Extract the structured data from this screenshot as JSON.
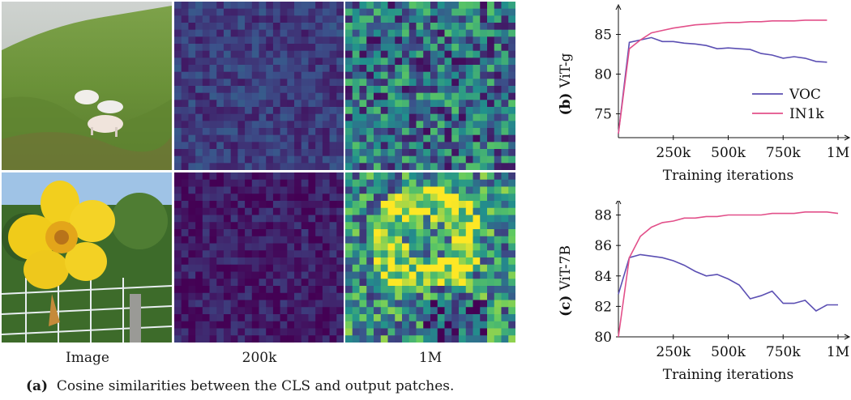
{
  "figure": {
    "column_labels": [
      "Image",
      "200k",
      "1M"
    ],
    "caption_tag": "(a)",
    "caption_text": "Cosine similarities between the CLS and output patches.",
    "heatmap_colors": [
      "#440154",
      "#3b528b",
      "#21918c",
      "#5ec962",
      "#fde725"
    ],
    "heatmaps": [
      {
        "row": "sheep",
        "checkpoint": "200k",
        "level": 0.18
      },
      {
        "row": "sheep",
        "checkpoint": "1M",
        "level": 0.38
      },
      {
        "row": "flower",
        "checkpoint": "200k",
        "level": 0.08
      },
      {
        "row": "flower",
        "checkpoint": "1M",
        "level": 0.5
      }
    ],
    "photo_icons": [
      "sheep-on-hillside-photo",
      "yellow-flower-photo"
    ]
  },
  "chart_data": [
    {
      "type": "line",
      "panel_label": "(b)",
      "model": "ViT-g",
      "xlabel": "Training iterations",
      "xticks": [
        "250k",
        "500k",
        "750k",
        "1M"
      ],
      "xtick_values": [
        250000,
        500000,
        750000,
        1000000
      ],
      "xlim": [
        0,
        1000000
      ],
      "ylim": [
        72,
        87.5
      ],
      "yticks": [
        75,
        80,
        85
      ],
      "legend": "right",
      "series": [
        {
          "name": "VOC",
          "color": "#5b4fb3",
          "x": [
            0,
            50000,
            100000,
            150000,
            200000,
            250000,
            300000,
            350000,
            400000,
            450000,
            500000,
            550000,
            600000,
            650000,
            700000,
            750000,
            800000,
            850000,
            900000,
            950000
          ],
          "values": [
            72.5,
            84.0,
            84.3,
            84.6,
            84.1,
            84.1,
            83.9,
            83.8,
            83.6,
            83.2,
            83.3,
            83.2,
            83.1,
            82.6,
            82.4,
            82.0,
            82.2,
            82.0,
            81.6,
            81.5
          ]
        },
        {
          "name": "IN1k",
          "color": "#e2508a",
          "x": [
            0,
            50000,
            100000,
            150000,
            200000,
            250000,
            300000,
            350000,
            400000,
            450000,
            500000,
            550000,
            600000,
            650000,
            700000,
            750000,
            800000,
            850000,
            900000,
            950000
          ],
          "values": [
            72.5,
            83.2,
            84.3,
            85.2,
            85.5,
            85.8,
            86.0,
            86.2,
            86.3,
            86.4,
            86.5,
            86.5,
            86.6,
            86.6,
            86.7,
            86.7,
            86.7,
            86.8,
            86.8,
            86.8
          ]
        }
      ]
    },
    {
      "type": "line",
      "panel_label": "(c)",
      "model": "ViT-7B",
      "xlabel": "Training iterations",
      "xticks": [
        "250k",
        "500k",
        "750k",
        "1M"
      ],
      "xtick_values": [
        250000,
        500000,
        750000,
        1000000
      ],
      "xlim": [
        0,
        1000000
      ],
      "ylim": [
        80,
        88.4
      ],
      "yticks": [
        80,
        82,
        84,
        86,
        88
      ],
      "legend": "none",
      "series": [
        {
          "name": "VOC",
          "color": "#5b4fb3",
          "x": [
            0,
            50000,
            100000,
            150000,
            200000,
            250000,
            300000,
            350000,
            400000,
            450000,
            500000,
            550000,
            600000,
            650000,
            700000,
            750000,
            800000,
            850000,
            900000,
            950000,
            1000000
          ],
          "values": [
            82.8,
            85.2,
            85.4,
            85.3,
            85.2,
            85.0,
            84.7,
            84.3,
            84.0,
            84.1,
            83.8,
            83.4,
            82.5,
            82.7,
            83.0,
            82.2,
            82.2,
            82.4,
            81.7,
            82.1,
            82.1
          ]
        },
        {
          "name": "IN1k",
          "color": "#e2508a",
          "x": [
            0,
            50000,
            100000,
            150000,
            200000,
            250000,
            300000,
            350000,
            400000,
            450000,
            500000,
            550000,
            600000,
            650000,
            700000,
            750000,
            800000,
            850000,
            900000,
            950000,
            1000000
          ],
          "values": [
            80.0,
            85.2,
            86.6,
            87.2,
            87.5,
            87.6,
            87.8,
            87.8,
            87.9,
            87.9,
            88.0,
            88.0,
            88.0,
            88.0,
            88.1,
            88.1,
            88.1,
            88.2,
            88.2,
            88.2,
            88.1
          ]
        }
      ]
    }
  ]
}
